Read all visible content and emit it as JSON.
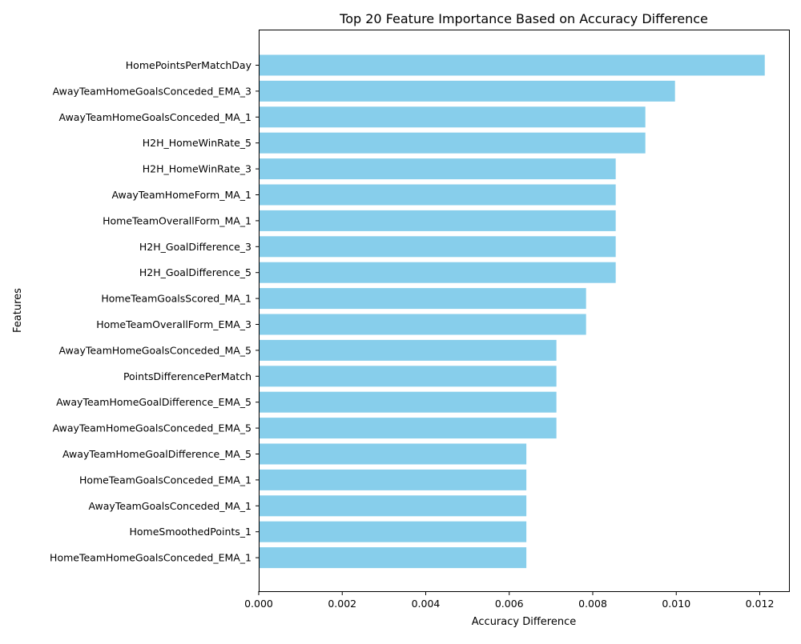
{
  "chart_data": {
    "type": "bar",
    "orientation": "horizontal",
    "title": "Top 20 Feature Importance Based on Accuracy Difference",
    "xlabel": "Accuracy Difference",
    "ylabel": "Features",
    "xlim": [
      0,
      0.0127
    ],
    "xticks": [
      "0.000",
      "0.002",
      "0.004",
      "0.006",
      "0.008",
      "0.010",
      "0.012"
    ],
    "bar_color": "#87CEEB",
    "grid": false,
    "categories": [
      "HomePointsPerMatchDay",
      "AwayTeamHomeGoalsConceded_EMA_3",
      "AwayTeamHomeGoalsConceded_MA_1",
      "H2H_HomeWinRate_5",
      "H2H_HomeWinRate_3",
      "AwayTeamHomeForm_MA_1",
      "HomeTeamOverallForm_MA_1",
      "H2H_GoalDifference_3",
      "H2H_GoalDifference_5",
      "HomeTeamGoalsScored_MA_1",
      "HomeTeamOverallForm_EMA_3",
      "AwayTeamHomeGoalsConceded_MA_5",
      "PointsDifferencePerMatch",
      "AwayTeamHomeGoalDifference_EMA_5",
      "AwayTeamHomeGoalsConceded_EMA_5",
      "AwayTeamHomeGoalDifference_MA_5",
      "HomeTeamGoalsConceded_EMA_1",
      "AwayTeamGoalsConceded_MA_1",
      "HomeSmoothedPoints_1",
      "HomeTeamHomeGoalsConceded_EMA_1"
    ],
    "values": [
      0.01212,
      0.00997,
      0.00926,
      0.00926,
      0.00855,
      0.00855,
      0.00855,
      0.00855,
      0.00855,
      0.00784,
      0.00784,
      0.00713,
      0.00713,
      0.00713,
      0.00713,
      0.00641,
      0.00641,
      0.00641,
      0.00641,
      0.00641
    ]
  }
}
